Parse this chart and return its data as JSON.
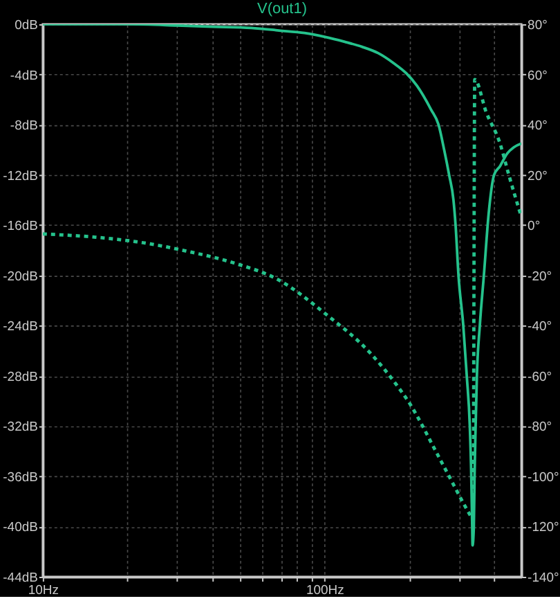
{
  "chart_data": {
    "type": "line",
    "title": "V(out1)",
    "log": "x",
    "grid": true,
    "xlim": [
      10,
      500
    ],
    "xticks": [
      {
        "value": 10,
        "label": "10Hz"
      },
      {
        "value": 20,
        "label": null
      },
      {
        "value": 30,
        "label": null
      },
      {
        "value": 40,
        "label": null
      },
      {
        "value": 50,
        "label": null
      },
      {
        "value": 60,
        "label": null
      },
      {
        "value": 70,
        "label": null
      },
      {
        "value": 80,
        "label": null
      },
      {
        "value": 90,
        "label": null
      },
      {
        "value": 100,
        "label": "100Hz"
      },
      {
        "value": 200,
        "label": null
      },
      {
        "value": 300,
        "label": null
      },
      {
        "value": 400,
        "label": null
      }
    ],
    "ylim": [
      -44,
      0
    ],
    "yticks": [
      {
        "value": 0,
        "label": "0dB"
      },
      {
        "value": -4,
        "label": "-4dB"
      },
      {
        "value": -8,
        "label": "-8dB"
      },
      {
        "value": -12,
        "label": "-12dB"
      },
      {
        "value": -16,
        "label": "-16dB"
      },
      {
        "value": -20,
        "label": "-20dB"
      },
      {
        "value": -24,
        "label": "-24dB"
      },
      {
        "value": -28,
        "label": "-28dB"
      },
      {
        "value": -32,
        "label": "-32dB"
      },
      {
        "value": -36,
        "label": "-36dB"
      },
      {
        "value": -40,
        "label": "-40dB"
      },
      {
        "value": -44,
        "label": "-44dB"
      }
    ],
    "y2lim": [
      -140,
      80
    ],
    "y2ticks": [
      {
        "value": 80,
        "label": "80°"
      },
      {
        "value": 60,
        "label": "60°"
      },
      {
        "value": 40,
        "label": "40°"
      },
      {
        "value": 20,
        "label": "20°"
      },
      {
        "value": 0,
        "label": "0°"
      },
      {
        "value": -20,
        "label": "-20°"
      },
      {
        "value": -40,
        "label": "-40°"
      },
      {
        "value": -60,
        "label": "-60°"
      },
      {
        "value": -80,
        "label": "-80°"
      },
      {
        "value": -100,
        "label": "-100°"
      },
      {
        "value": -120,
        "label": "-120°"
      },
      {
        "value": -140,
        "label": "-140°"
      }
    ],
    "series": [
      {
        "color": "#25c28c",
        "line_style": "solid",
        "x": [
          10,
          20,
          30,
          40,
          55,
          69,
          85,
          100,
          118,
          136,
          155,
          176,
          195,
          213,
          239,
          254,
          266,
          277,
          287,
          292,
          299,
          311,
          320,
          328,
          332,
          334.5,
          335.5,
          339,
          341,
          344,
          347.6,
          356,
          368,
          383,
          400,
          420,
          445,
          470,
          500
        ],
        "values": [
          0,
          0,
          -0.1,
          -0.2,
          -0.3,
          -0.5,
          -0.7,
          -1.0,
          -1.4,
          -1.8,
          -2.3,
          -3.1,
          -3.9,
          -4.9,
          -6.8,
          -8,
          -10,
          -12,
          -14,
          -16,
          -20,
          -24,
          -28,
          -32,
          -36,
          -40,
          -41.5,
          -40,
          -36,
          -32,
          -28,
          -24,
          -20,
          -15,
          -12,
          -11.3,
          -10.3,
          -9.8,
          -9.5
        ]
      },
      {
        "color": "#25c28c",
        "line_style": "dotted",
        "axis": "y2",
        "x": [
          10,
          15.4,
          22.4,
          32.6,
          47.5,
          69,
          100,
          147,
          180,
          198,
          258,
          329,
          337,
          341.5,
          375,
          420,
          452,
          500
        ],
        "values": [
          -3.5,
          -4.8,
          -6.9,
          -10.4,
          -15,
          -21.9,
          -35,
          -51.5,
          -63.5,
          -70,
          -93.5,
          -115.5,
          -117.5,
          58,
          45,
          32.5,
          19.7,
          3.3
        ]
      }
    ]
  }
}
